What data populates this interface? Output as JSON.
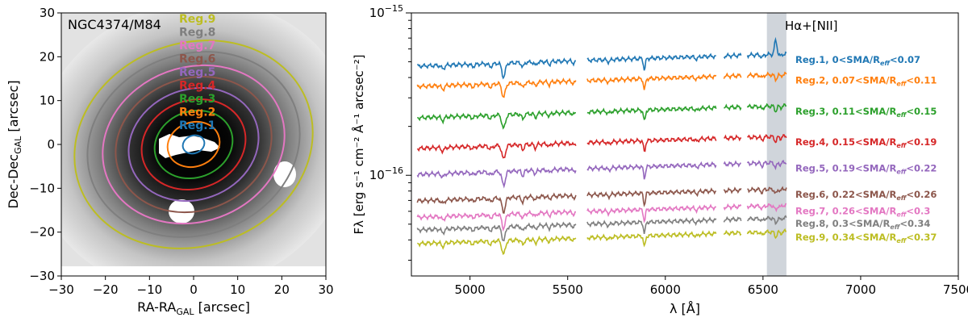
{
  "chart_data": [
    {
      "type": "image",
      "title": "NGC4374/M84",
      "xlabel": "RA-RA",
      "xlabel_sub": "GAL",
      "xlabel_unit": " [arcsec]",
      "ylabel": "Dec-Dec",
      "ylabel_sub": "GAL",
      "ylabel_unit": " [arcsec]",
      "xlim": [
        -30,
        30
      ],
      "ylim": [
        -30,
        30
      ],
      "xticks": [
        "−30",
        "−20",
        "−10",
        "0",
        "10",
        "20",
        "30"
      ],
      "yticks": [
        "30",
        "20",
        "10",
        "0",
        "−10",
        "−20",
        "−30"
      ],
      "tick_values": [
        -30,
        -20,
        -10,
        0,
        10,
        20,
        30
      ],
      "regions": [
        {
          "name": "Reg.1",
          "color": "#1f77b4",
          "a": 2.5,
          "b": 2.0
        },
        {
          "name": "Reg.2",
          "color": "#ff7f0e",
          "a": 6.0,
          "b": 5.0
        },
        {
          "name": "Reg.3",
          "color": "#2ca02c",
          "a": 9.0,
          "b": 7.5
        },
        {
          "name": "Reg.4",
          "color": "#d62728",
          "a": 12.0,
          "b": 10.0
        },
        {
          "name": "Reg.5",
          "color": "#9467bd",
          "a": 15.0,
          "b": 12.5
        },
        {
          "name": "Reg.6",
          "color": "#8c564b",
          "a": 18.0,
          "b": 15.0
        },
        {
          "name": "Reg.7",
          "color": "#e377c2",
          "a": 21.0,
          "b": 17.5
        },
        {
          "name": "Reg.8",
          "color": "#7f7f7f",
          "a": 24.5,
          "b": 20.5
        },
        {
          "name": "Reg.9",
          "color": "#bcbd22",
          "a": 27.5,
          "b": 23.0
        }
      ]
    },
    {
      "type": "line",
      "xlabel": "λ [Å]",
      "ylabel": "Fλ [erg s⁻¹ cm⁻² Å⁻¹ arcsec⁻²]",
      "xlim": [
        4700,
        7500
      ],
      "ylog": true,
      "xticks": [
        "5000",
        "5500",
        "6000",
        "6500",
        "7000",
        "7500"
      ],
      "xtick_values": [
        5000,
        5500,
        6000,
        6500,
        7000,
        7500
      ],
      "ytick_major": [
        {
          "label": "10",
          "exp": "−15"
        },
        {
          "label": "10",
          "exp": "−16"
        }
      ],
      "ytick_values": [
        1e-15,
        1e-16
      ],
      "shaded_band": {
        "x0": 6520,
        "x1": 6620,
        "color": "#d0d5db"
      },
      "annotation": "Hα+[NII]",
      "series": [
        {
          "name": "Reg.1, 0<SMA/R",
          "sub": "eff",
          "tail": "<0.07",
          "color": "#1f77b4",
          "level": 5.2e-16
        },
        {
          "name": "Reg.2, 0.07<SMA/R",
          "sub": "eff",
          "tail": "<0.11",
          "color": "#ff7f0e",
          "level": 3.9e-16
        },
        {
          "name": "Reg.3, 0.11<SMA/R",
          "sub": "eff",
          "tail": "<0.15",
          "color": "#2ca02c",
          "level": 2.5e-16
        },
        {
          "name": "Reg.4, 0.15<SMA/R",
          "sub": "eff",
          "tail": "<0.19",
          "color": "#d62728",
          "level": 1.62e-16
        },
        {
          "name": "Reg.5, 0.19<SMA/R",
          "sub": "eff",
          "tail": "<0.22",
          "color": "#9467bd",
          "level": 1.12e-16
        },
        {
          "name": "Reg.6, 0.22<SMA/R",
          "sub": "eff",
          "tail": "<0.26",
          "color": "#8c564b",
          "level": 7.7e-17
        },
        {
          "name": "Reg.7, 0.26<SMA/R",
          "sub": "eff",
          "tail": "<0.3",
          "color": "#e377c2",
          "level": 6.1e-17
        },
        {
          "name": "Reg.8, 0.3<SMA/R",
          "sub": "eff",
          "tail": "<0.34",
          "color": "#7f7f7f",
          "level": 5.1e-17
        },
        {
          "name": "Reg.9, 0.34<SMA/R",
          "sub": "eff",
          "tail": "<0.37",
          "color": "#bcbd22",
          "level": 4.2e-17
        }
      ]
    }
  ]
}
